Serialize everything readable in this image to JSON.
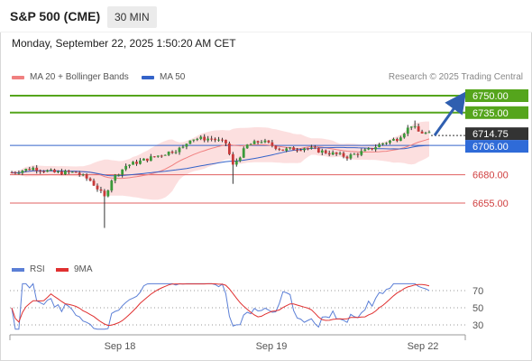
{
  "header": {
    "symbol": "S&P 500 (CME)",
    "timeframe": "30 MIN",
    "datetime": "Monday, September 22, 2025 1:50:20 AM CET"
  },
  "legend": {
    "ma20": "MA 20 + Bollinger Bands",
    "ma50": "MA 50",
    "credit": "Research © 2025 Trading Central"
  },
  "rsi_legend": {
    "rsi": "RSI",
    "ma9": "9MA"
  },
  "colors": {
    "resistance": "#55a51c",
    "support": "#e06060",
    "ma50": "#3463c9",
    "ma20": "#f08080",
    "bb_fill": "#fcd9d9",
    "current": "#333333",
    "candle_up": "#3a9a3a",
    "candle_down": "#c83a3a",
    "rsi": "#5b7fd6",
    "rsi_ma": "#e03030",
    "arrow": "#2f5fb0"
  },
  "chart_data": {
    "type": "candlestick",
    "price_axis": {
      "min": 6620,
      "max": 6765
    },
    "levels": [
      {
        "value": 6750,
        "label": "6750.00",
        "kind": "resistance"
      },
      {
        "value": 6735,
        "label": "6735.00",
        "kind": "resistance"
      },
      {
        "value": 6714.75,
        "label": "6714.75",
        "kind": "current"
      },
      {
        "value": 6706,
        "label": "6706.00",
        "kind": "pivot"
      },
      {
        "value": 6680,
        "label": "6680.00",
        "kind": "support"
      },
      {
        "value": 6655,
        "label": "6655.00",
        "kind": "support"
      }
    ],
    "x_labels": [
      "Sep 18",
      "Sep 19",
      "Sep 22"
    ],
    "rsi": {
      "levels": [
        "70",
        "50",
        "30"
      ],
      "range": [
        20,
        80
      ]
    }
  }
}
